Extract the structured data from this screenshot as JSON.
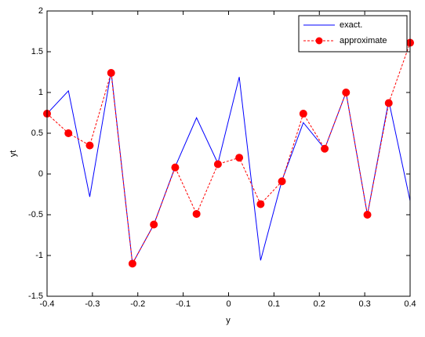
{
  "chart_data": {
    "type": "line",
    "x_label": "y",
    "y_label": "yt",
    "x": [
      -0.4,
      -0.3529,
      -0.3059,
      -0.2588,
      -0.2118,
      -0.1647,
      -0.1176,
      -0.0706,
      -0.0235,
      0.0235,
      0.0706,
      0.1176,
      0.1647,
      0.2118,
      0.2588,
      0.3059,
      0.3529,
      0.4
    ],
    "series": [
      {
        "name": "exact.",
        "color": "#0000ff",
        "linestyle": "solid",
        "values": [
          0.74,
          1.02,
          -0.28,
          1.26,
          -1.1,
          -0.62,
          0.09,
          0.69,
          0.13,
          1.19,
          -1.06,
          -0.08,
          0.63,
          0.31,
          1.0,
          -0.5,
          0.9,
          -0.33
        ]
      },
      {
        "name": "approximate",
        "color": "#ff0000",
        "linestyle": "dashed",
        "marker": "o",
        "values": [
          0.74,
          0.5,
          0.35,
          1.24,
          -1.1,
          -0.62,
          0.08,
          -0.49,
          0.12,
          0.2,
          -0.37,
          -0.09,
          0.74,
          0.31,
          1.0,
          -0.5,
          0.87,
          1.61
        ]
      }
    ],
    "xlim": [
      -0.4,
      0.4
    ],
    "xticks": [
      -0.4,
      -0.3,
      -0.2,
      -0.1,
      0,
      0.1,
      0.2,
      0.3,
      0.4
    ],
    "ylim": [
      -1.5,
      2
    ],
    "yticks": [
      -1.5,
      -1,
      -0.5,
      0,
      0.5,
      1,
      1.5,
      2
    ],
    "grid": false,
    "legend_position": "upper-right"
  }
}
